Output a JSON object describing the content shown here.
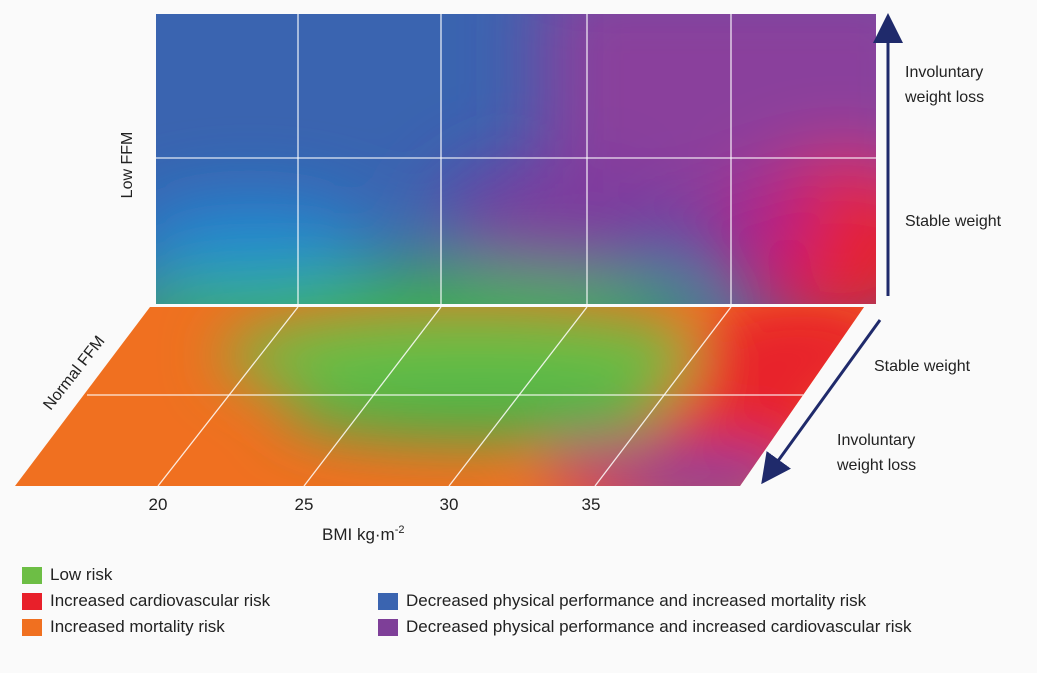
{
  "axes": {
    "vertical_label": "Low FFM",
    "floor_label": "Normal FFM",
    "x_label": "BMI kg·m",
    "x_label_sup": "-2",
    "x_ticks": [
      "20",
      "25",
      "30",
      "35"
    ]
  },
  "annotations": {
    "upper_top": "Involuntary weight loss",
    "upper_top_line1": "Involuntary",
    "upper_top_line2": "weight loss",
    "upper_bottom": "Stable weight",
    "lower_top": "Stable weight",
    "lower_bottom_line1": "Involuntary",
    "lower_bottom_line2": "weight loss"
  },
  "legend": [
    {
      "label": "Low risk",
      "color": "#6dbe45"
    },
    {
      "label": "Increased cardiovascular risk",
      "color": "#e8202a"
    },
    {
      "label": "Increased mortality risk",
      "color": "#f07020"
    },
    {
      "label": "Decreased physical performance and increased mortality risk",
      "color": "#3a64b0"
    },
    {
      "label": "Decreased physical performance and increased cardiovascular risk",
      "color": "#7e3f98"
    }
  ],
  "colors": {
    "arrow": "#1f2a6b",
    "green": "#6dbe45",
    "red": "#e8202a",
    "orange": "#f07020",
    "blue": "#3a64b0",
    "purple": "#7e3f98"
  }
}
